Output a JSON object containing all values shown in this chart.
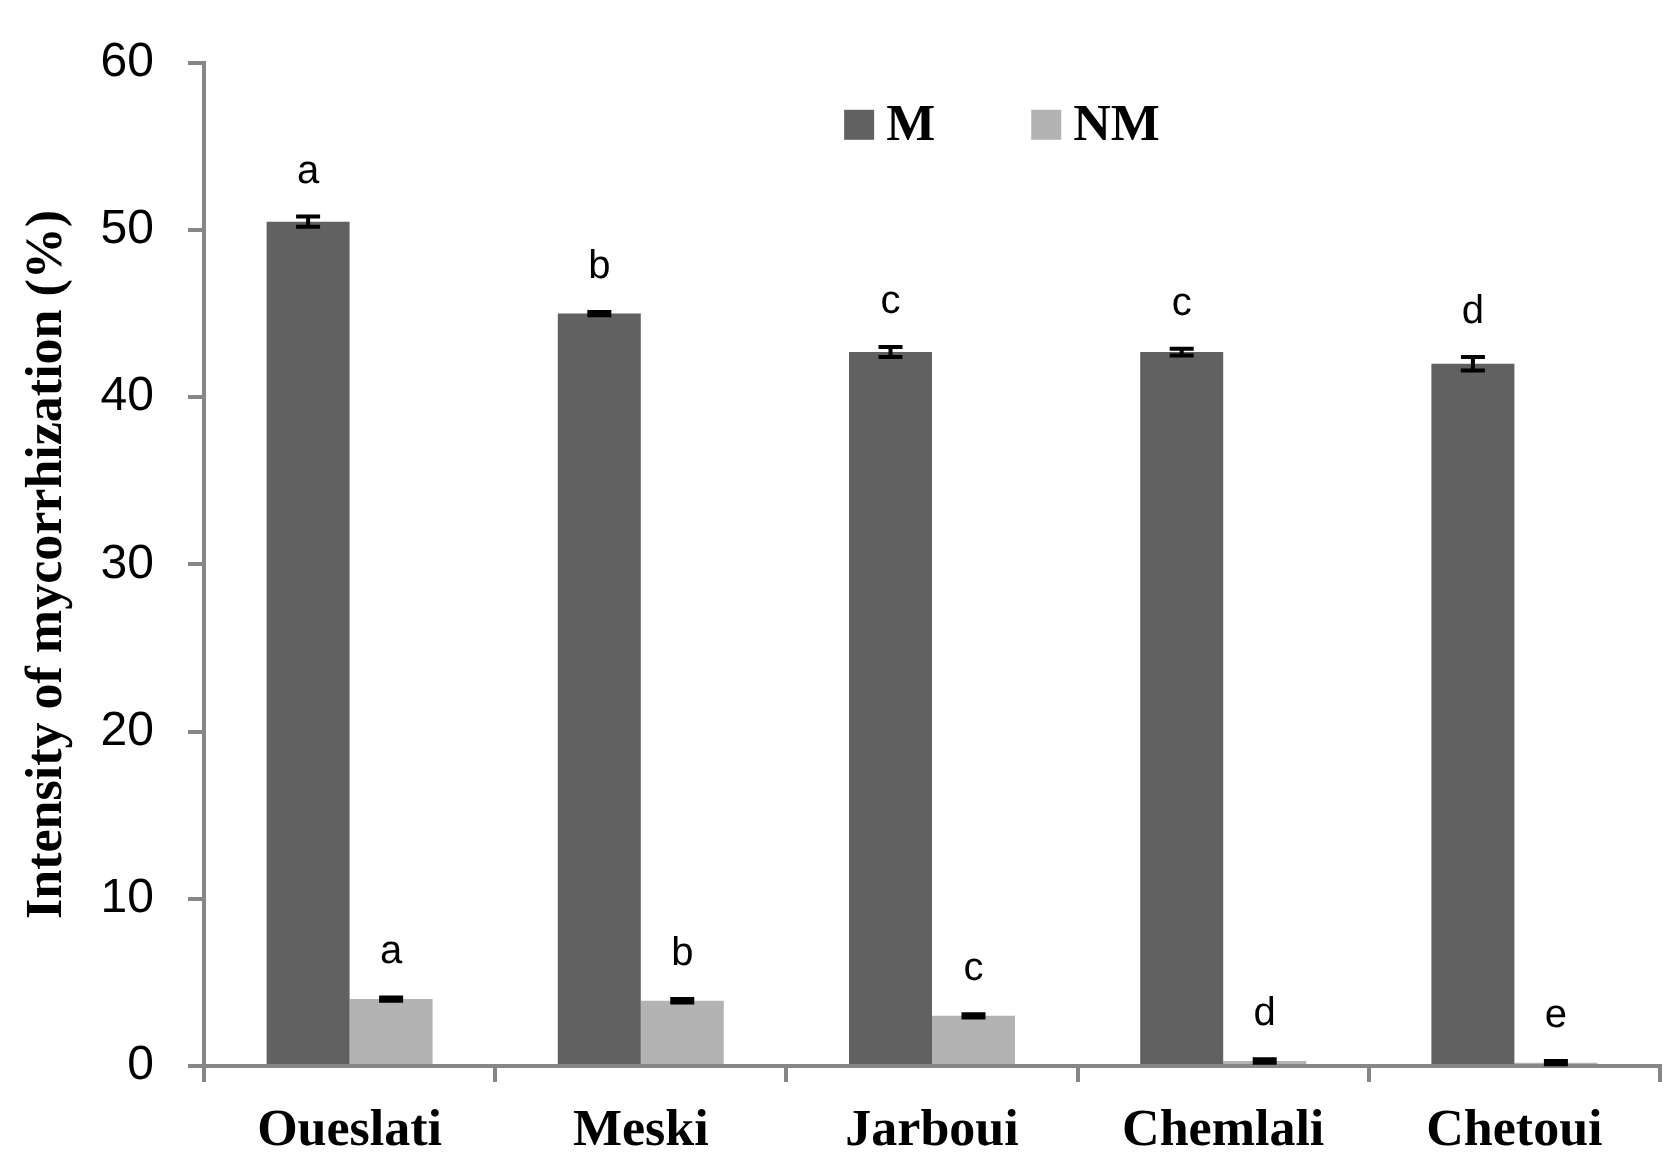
{
  "chart_data": {
    "type": "bar",
    "ylabel": "Intensity of mycorrhization (%)",
    "categories": [
      "Oueslati",
      "Meski",
      "Jarboui",
      "Chemlali",
      "Chetoui"
    ],
    "series": [
      {
        "name": "M",
        "color": "#616161",
        "values": [
          50.5,
          45,
          42.7,
          42.7,
          42
        ],
        "errors": [
          0.3,
          0.1,
          0.3,
          0.2,
          0.4
        ],
        "value_labels": [
          "a",
          "b",
          "c",
          "c",
          "d"
        ]
      },
      {
        "name": "NM",
        "color": "#b3b3b3",
        "values": [
          4,
          3.9,
          3,
          0.3,
          0.2
        ],
        "errors": [
          0.1,
          0.1,
          0.1,
          0.1,
          0.1
        ],
        "value_labels": [
          "a",
          "b",
          "c",
          "d",
          "e"
        ]
      }
    ],
    "ylim": [
      0,
      60
    ],
    "yticks": [
      0,
      10,
      20,
      30,
      40,
      50,
      60
    ],
    "grid": false,
    "legend": "top"
  }
}
